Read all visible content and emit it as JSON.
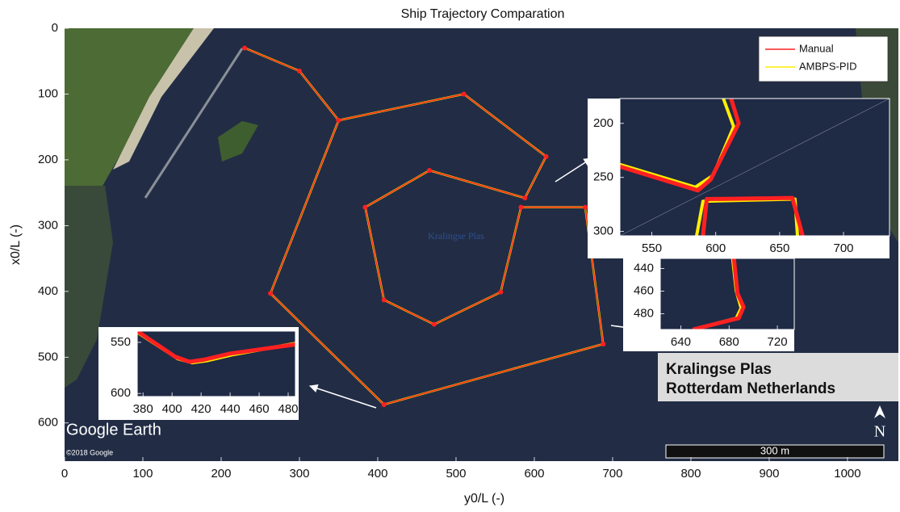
{
  "chart_data": [
    {
      "type": "line",
      "title": "Ship Trajectory Comparation",
      "xlabel": "y0/L (-)",
      "ylabel": "x0/L (-)",
      "xlim": [
        0,
        1065
      ],
      "ylim": [
        0,
        658
      ],
      "y_reversed": true,
      "xticks": [
        0,
        100,
        200,
        300,
        400,
        500,
        600,
        700,
        800,
        900,
        1000
      ],
      "yticks": [
        0,
        100,
        200,
        300,
        400,
        500,
        600
      ],
      "legend": "upper right",
      "lake_label": "Kralingse Plas",
      "map_label": [
        "Kralingse Plas",
        "Rotterdam Netherlands"
      ],
      "watermark": "Google Earth",
      "copyright": "©2018 Google",
      "scale_label": "300 m",
      "north": "N",
      "series": [
        {
          "name": "Manual",
          "color": "#ff2020",
          "marker": true,
          "x": [
            230,
            300,
            350,
            510,
            615,
            588,
            466,
            384,
            408,
            472,
            557,
            583,
            665,
            688,
            408,
            263,
            350
          ],
          "values": [
            30,
            65,
            140,
            100,
            195,
            258,
            216,
            272,
            413,
            450,
            401,
            272,
            272,
            480,
            572,
            403,
            140
          ]
        },
        {
          "name": "AMBPS-PID",
          "color": "#ffee00",
          "x": [
            230,
            300,
            350,
            510,
            615,
            588,
            466,
            384,
            408,
            472,
            557,
            583,
            665,
            688,
            408,
            263,
            350
          ],
          "values": [
            30,
            65,
            140,
            100,
            195,
            258,
            216,
            272,
            413,
            450,
            401,
            272,
            272,
            480,
            572,
            403,
            140
          ]
        }
      ]
    },
    {
      "type": "line",
      "xlim": [
        525,
        736
      ],
      "ylim": [
        177,
        304
      ],
      "y_reversed": true,
      "xticks": [
        550,
        600,
        650,
        700
      ],
      "yticks": [
        200,
        250,
        300
      ],
      "series": [
        {
          "name": "Manual",
          "color": "#ff2020",
          "x": [
            525,
            586,
            596,
            618,
            612,
            null,
            590,
            593,
            660,
            668
          ],
          "values": [
            240,
            262,
            252,
            200,
            177,
            null,
            304,
            270,
            269,
            304
          ]
        },
        {
          "name": "AMBPS-PID",
          "color": "#ffee00",
          "x": [
            525,
            584,
            598,
            614,
            606,
            null,
            585,
            590,
            662,
            664
          ],
          "values": [
            238,
            259,
            248,
            203,
            177,
            null,
            304,
            272,
            270,
            304
          ]
        }
      ]
    },
    {
      "type": "line",
      "xlim": [
        623,
        734
      ],
      "ylim": [
        431,
        494
      ],
      "y_reversed": true,
      "xticks": [
        640,
        680,
        720
      ],
      "yticks": [
        440,
        460,
        480
      ],
      "series": [
        {
          "name": "Manual",
          "color": "#ff2020",
          "x": [
            684,
            687,
            692,
            688,
            650
          ],
          "values": [
            431,
            462,
            474,
            484,
            494
          ]
        },
        {
          "name": "AMBPS-PID",
          "color": "#ffee00",
          "x": [
            683,
            686,
            690,
            686,
            650
          ],
          "values": [
            431,
            460,
            475,
            484,
            494
          ]
        }
      ]
    },
    {
      "type": "line",
      "xlim": [
        376,
        485
      ],
      "ylim": [
        539,
        603
      ],
      "y_reversed": true,
      "xticks": [
        380,
        400,
        420,
        440,
        460,
        480
      ],
      "yticks": [
        550,
        600
      ],
      "series": [
        {
          "name": "Manual",
          "color": "#ff2020",
          "x": [
            376,
            402,
            412,
            422,
            440,
            485
          ],
          "values": [
            539,
            564,
            569,
            567,
            561,
            552
          ]
        },
        {
          "name": "AMBPS-PID",
          "color": "#ffee00",
          "x": [
            376,
            404,
            414,
            424,
            442,
            485
          ],
          "values": [
            540,
            566,
            570,
            568,
            562,
            551
          ]
        }
      ]
    }
  ]
}
